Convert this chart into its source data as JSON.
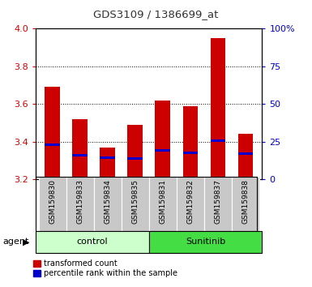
{
  "title": "GDS3109 / 1386699_at",
  "categories": [
    "GSM159830",
    "GSM159833",
    "GSM159834",
    "GSM159835",
    "GSM159831",
    "GSM159832",
    "GSM159837",
    "GSM159838"
  ],
  "red_values": [
    3.69,
    3.52,
    3.37,
    3.49,
    3.62,
    3.59,
    3.95,
    3.44
  ],
  "blue_values": [
    3.385,
    3.33,
    3.315,
    3.31,
    3.355,
    3.34,
    3.405,
    3.335
  ],
  "bar_bottom": 3.2,
  "ylim": [
    3.2,
    4.0
  ],
  "y2lim": [
    0,
    100
  ],
  "yticks": [
    3.2,
    3.4,
    3.6,
    3.8,
    4.0
  ],
  "y2ticks": [
    0,
    25,
    50,
    75,
    100
  ],
  "y2ticklabels": [
    "0",
    "25",
    "50",
    "75",
    "100%"
  ],
  "control_label": "control",
  "sunitinib_label": "Sunitinib",
  "agent_label": "agent",
  "legend_red": "transformed count",
  "legend_blue": "percentile rank within the sample",
  "bar_color": "#cc0000",
  "blue_color": "#0000cc",
  "control_bg": "#ccffcc",
  "sunitinib_bg": "#44dd44",
  "sample_bg": "#c8c8c8",
  "plot_bg": "#ffffff",
  "title_color": "#333333",
  "left_axis_color": "#cc0000",
  "right_axis_color": "#0000cc",
  "bar_width": 0.55
}
